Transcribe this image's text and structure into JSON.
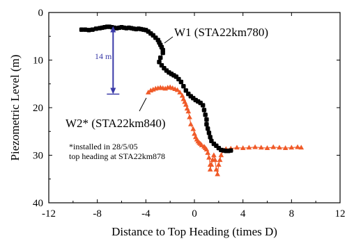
{
  "chart_data": {
    "type": "scatter",
    "xlabel": "Distance to Top Heading (times D)",
    "ylabel": "Piezometric Level (m)",
    "xlim": [
      -12,
      12
    ],
    "ylim": [
      0,
      40
    ],
    "y_inverted": true,
    "xticks": [
      "-12",
      "-8",
      "-4",
      "0",
      "4",
      "8",
      "12"
    ],
    "yticks": [
      "0",
      "10",
      "20",
      "30",
      "40"
    ],
    "grid": false,
    "series": [
      {
        "name": "W1 (STA22km780)",
        "color": "#000000",
        "marker": "square",
        "x": [
          -9.3,
          -9.0,
          -8.7,
          -8.4,
          -8.1,
          -7.8,
          -7.6,
          -7.4,
          -7.2,
          -7.0,
          -6.8,
          -6.6,
          -6.4,
          -6.2,
          -6.0,
          -5.8,
          -5.6,
          -5.4,
          -5.2,
          -5.0,
          -4.8,
          -4.6,
          -4.4,
          -4.2,
          -4.0,
          -3.8,
          -3.6,
          -3.4,
          -3.2,
          -3.0,
          -2.9,
          -2.8,
          -2.7,
          -2.6,
          -2.6,
          -2.8,
          -2.9,
          -2.7,
          -2.5,
          -2.3,
          -2.1,
          -1.9,
          -1.7,
          -1.5,
          -1.3,
          -1.1,
          -0.9,
          -0.7,
          -0.5,
          -0.3,
          -0.1,
          0.1,
          0.3,
          0.5,
          0.7,
          0.8,
          0.9,
          1.0,
          1.0,
          1.1,
          1.2,
          1.3,
          1.4,
          1.6,
          1.8,
          2.0,
          2.2,
          2.4,
          2.6,
          2.8,
          3.0
        ],
        "y": [
          3.6,
          3.6,
          3.7,
          3.6,
          3.4,
          3.3,
          3.2,
          3.1,
          3.0,
          3.0,
          3.1,
          3.2,
          3.3,
          3.2,
          3.1,
          3.2,
          3.3,
          3.2,
          3.3,
          3.4,
          3.5,
          3.4,
          3.5,
          3.6,
          3.7,
          4.0,
          4.4,
          4.8,
          5.3,
          5.8,
          6.3,
          6.8,
          7.3,
          7.9,
          8.5,
          9.5,
          10.4,
          11.1,
          11.7,
          12.2,
          12.6,
          12.9,
          13.2,
          13.5,
          14.0,
          14.6,
          15.5,
          16.4,
          17.1,
          17.6,
          18.0,
          18.4,
          18.7,
          19.0,
          19.5,
          20.5,
          21.5,
          22.5,
          23.5,
          24.4,
          25.3,
          26.2,
          27.0,
          27.6,
          28.0,
          28.5,
          28.9,
          29.0,
          29.1,
          29.1,
          29.0
        ]
      },
      {
        "name": "W2* (STA22km840)",
        "color": "#f05a28",
        "marker": "triangle",
        "x": [
          -3.8,
          -3.6,
          -3.4,
          -3.2,
          -3.0,
          -2.8,
          -2.6,
          -2.4,
          -2.2,
          -2.0,
          -1.8,
          -1.6,
          -1.4,
          -1.2,
          -1.0,
          -0.9,
          -0.8,
          -0.7,
          -0.6,
          -0.5,
          -0.4,
          -0.3,
          -0.1,
          0.0,
          0.1,
          0.2,
          0.3,
          0.4,
          0.5,
          0.6,
          0.8,
          0.9,
          1.0,
          1.1,
          1.2,
          1.3,
          1.3,
          1.4,
          1.5,
          1.6,
          1.7,
          1.8,
          1.9,
          2.0,
          2.1,
          2.2,
          2.4,
          2.6,
          3.0,
          3.5,
          4.0,
          4.5,
          5.0,
          5.5,
          6.0,
          6.5,
          7.0,
          7.5,
          8.0,
          8.5,
          8.8
        ],
        "y": [
          16.8,
          16.4,
          16.2,
          16.0,
          15.9,
          15.8,
          15.9,
          16.0,
          15.8,
          15.7,
          15.9,
          16.1,
          16.3,
          16.8,
          17.5,
          18.2,
          18.8,
          19.4,
          20.2,
          20.8,
          22.0,
          23.5,
          24.5,
          25.5,
          26.2,
          26.7,
          27.1,
          27.4,
          27.6,
          27.9,
          28.2,
          28.5,
          28.8,
          29.5,
          30.5,
          32.0,
          33.0,
          32.0,
          31.0,
          30.0,
          31.0,
          33.0,
          34.0,
          32.0,
          31.0,
          30.0,
          29.0,
          28.7,
          28.6,
          28.4,
          28.5,
          28.4,
          28.3,
          28.4,
          28.5,
          28.3,
          28.4,
          28.5,
          28.4,
          28.3,
          28.4
        ]
      }
    ],
    "annotations": {
      "w1_label": "W1 (STA22km780)",
      "w2_label": "W2* (STA22km840)",
      "note_line1": "*installed in 28/5/05",
      "note_line2": "top heading at STA22km878",
      "dimension_label": "14 m",
      "dimension_range_y": [
        3.0,
        17.0
      ],
      "dimension_x": -6.7
    }
  }
}
